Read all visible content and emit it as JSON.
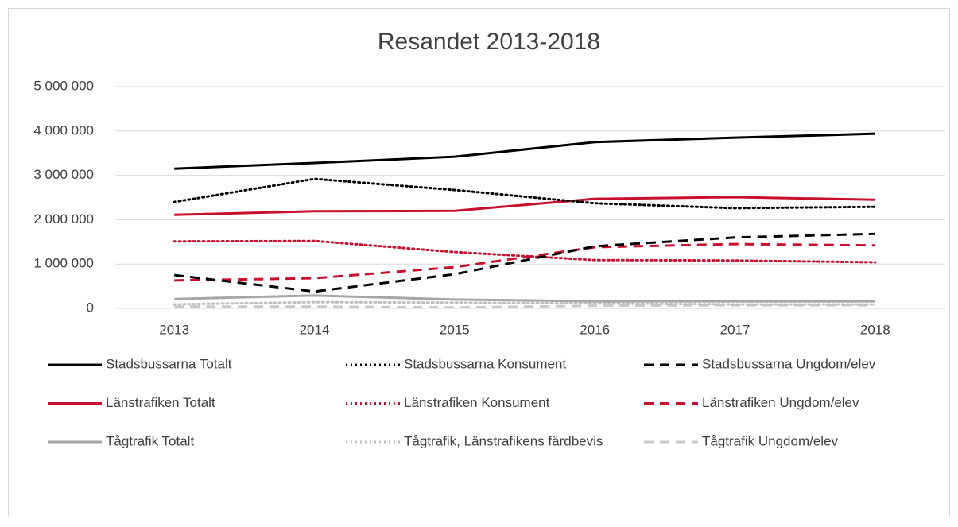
{
  "chart_data": {
    "type": "line",
    "title": "Resandet 2013-2018",
    "categories": [
      "2013",
      "2014",
      "2015",
      "2016",
      "2017",
      "2018"
    ],
    "ylim": [
      0,
      5000000
    ],
    "yticks": [
      0,
      {
        "value": 1000000,
        "label": "1 000 000"
      },
      {
        "value": 2000000,
        "label": "2 000 000"
      },
      {
        "value": 3000000,
        "label": "3 000 000"
      },
      {
        "value": 4000000,
        "label": "4 000 000"
      },
      {
        "value": 5000000,
        "label": "5 000 000"
      }
    ],
    "grid": true,
    "legend": "bottom",
    "series": [
      {
        "name": "Stadsbussarna Totalt",
        "color": "#000000",
        "style": "solid",
        "values": [
          3150000,
          3280000,
          3420000,
          3750000,
          3850000,
          3940000
        ]
      },
      {
        "name": "Stadsbussarna Konsument",
        "color": "#000000",
        "style": "dotted",
        "values": [
          2400000,
          2920000,
          2670000,
          2370000,
          2260000,
          2290000
        ]
      },
      {
        "name": "Stadsbussarna Ungdom/elev",
        "color": "#000000",
        "style": "dashed",
        "values": [
          750000,
          380000,
          770000,
          1400000,
          1600000,
          1680000
        ]
      },
      {
        "name": "Länstrafiken Totalt",
        "color": "#c8102e",
        "style": "solid",
        "values": [
          2110000,
          2190000,
          2200000,
          2470000,
          2510000,
          2450000
        ]
      },
      {
        "name": "Länstrafiken Konsument",
        "color": "#c8102e",
        "style": "dotted",
        "values": [
          1510000,
          1520000,
          1270000,
          1090000,
          1080000,
          1040000
        ]
      },
      {
        "name": "Länstrafiken Ungdom/elev",
        "color": "#c8102e",
        "style": "dashed",
        "values": [
          630000,
          680000,
          930000,
          1380000,
          1450000,
          1420000
        ]
      },
      {
        "name": "Tågtrafik Totalt",
        "color": "#a6a6a6",
        "style": "solid",
        "values": [
          210000,
          290000,
          200000,
          160000,
          160000,
          160000
        ]
      },
      {
        "name": "Tågtrafik, Länstrafikens färdbevis",
        "color": "#bfbfbf",
        "style": "dotted",
        "values": [
          90000,
          140000,
          130000,
          110000,
          90000,
          90000
        ]
      },
      {
        "name": "Tågtrafik Ungdom/elev",
        "color": "#c9c9c9",
        "style": "dashed",
        "values": [
          40000,
          40000,
          20000,
          60000,
          70000,
          70000
        ]
      }
    ]
  }
}
